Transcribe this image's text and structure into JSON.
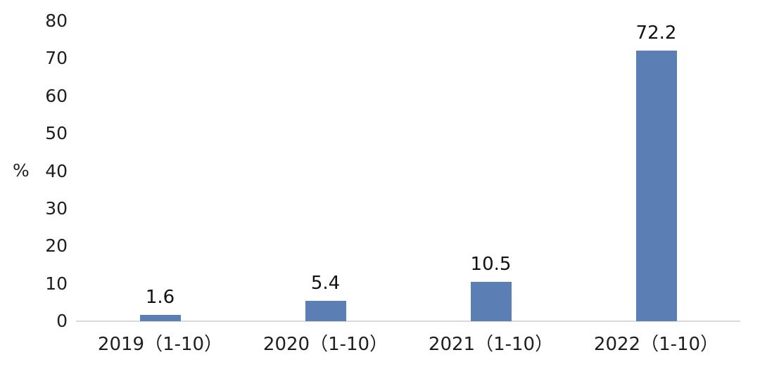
{
  "chart_data": {
    "type": "bar",
    "title": "",
    "categories": [
      "2019（1-10）",
      "2020（1-10）",
      "2021（1-10）",
      "2022（1-10）"
    ],
    "values": [
      1.6,
      5.4,
      10.5,
      72.2
    ],
    "data_labels": [
      "1.6",
      "5.4",
      "10.5",
      "72.2"
    ],
    "xlabel": "",
    "ylabel": "%",
    "ylim": [
      0,
      80
    ],
    "yticks": [
      0,
      10,
      20,
      30,
      40,
      50,
      60,
      70,
      80
    ],
    "grid": false,
    "legend_position": "none"
  },
  "colors": {
    "bar": "#5b7eb5",
    "text": "#1f1f1f",
    "axis_line": "#d9d9d9",
    "background": "#ffffff"
  }
}
